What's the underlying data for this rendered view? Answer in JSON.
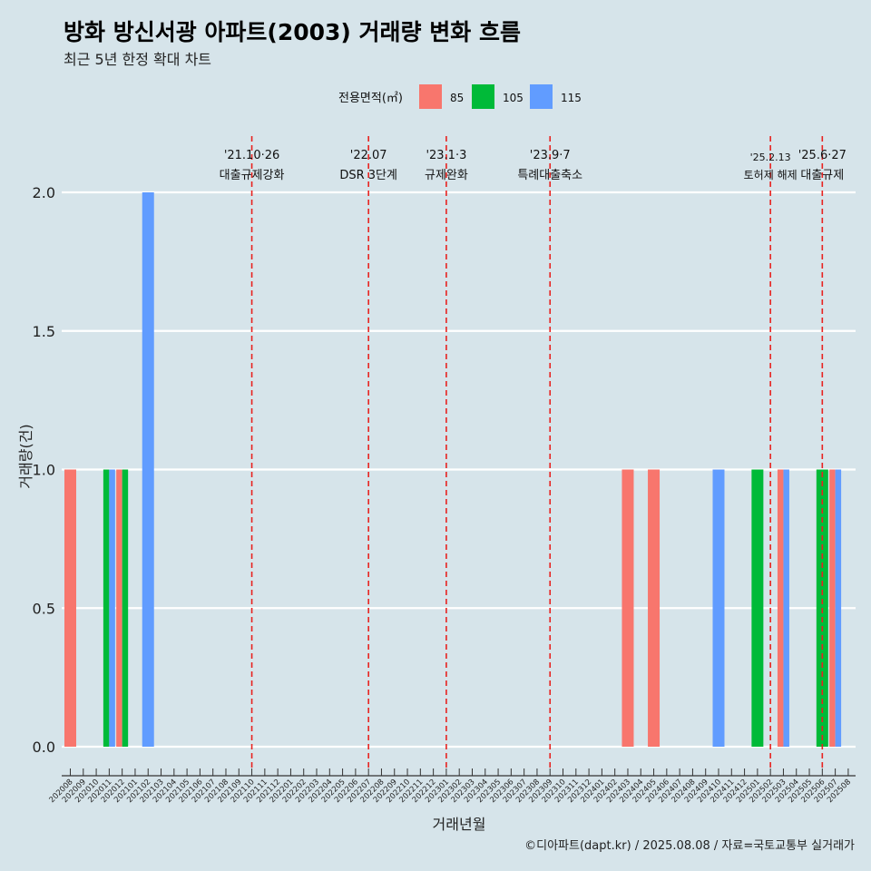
{
  "title": "방화 방신서광 아파트(2003) 거래량 변화 흐름",
  "subtitle": "최근 5년 한정 확대 차트",
  "caption": "©디아파트(dapt.kr) / 2025.08.08 / 자료=국토교통부 실거래가",
  "colors": {
    "background": "#d6e4ea",
    "grid": "#ffffff",
    "event_line": "#e8221f",
    "series_85": "#f8766d",
    "series_105": "#00ba38",
    "series_115": "#619cff"
  },
  "chart_data": {
    "type": "bar",
    "xlabel": "거래년월",
    "ylabel": "거래량(건)",
    "ylim": [
      0,
      2
    ],
    "grid": true,
    "legend": {
      "title": "전용면적(㎡)",
      "position": "top"
    },
    "y_ticks": [
      "0.0",
      "0.5",
      "1.0",
      "1.5",
      "2.0"
    ],
    "categories": [
      "202008",
      "202009",
      "202010",
      "202011",
      "202012",
      "202101",
      "202102",
      "202103",
      "202104",
      "202105",
      "202106",
      "202107",
      "202108",
      "202109",
      "202110",
      "202111",
      "202112",
      "202201",
      "202202",
      "202203",
      "202204",
      "202205",
      "202206",
      "202207",
      "202208",
      "202209",
      "202210",
      "202211",
      "202212",
      "202301",
      "202302",
      "202303",
      "202304",
      "202305",
      "202306",
      "202307",
      "202308",
      "202309",
      "202310",
      "202311",
      "202312",
      "202401",
      "202402",
      "202403",
      "202404",
      "202405",
      "202406",
      "202407",
      "202408",
      "202409",
      "202410",
      "202411",
      "202412",
      "202501",
      "202502",
      "202503",
      "202504",
      "202505",
      "202506",
      "202507",
      "202508"
    ],
    "series": [
      {
        "name": "85",
        "values": [
          {
            "month": "202008",
            "count": 1
          },
          {
            "month": "202012",
            "count": 1
          },
          {
            "month": "202403",
            "count": 1
          },
          {
            "month": "202405",
            "count": 1
          },
          {
            "month": "202503",
            "count": 1
          },
          {
            "month": "202507",
            "count": 1
          }
        ]
      },
      {
        "name": "105",
        "values": [
          {
            "month": "202011",
            "count": 1
          },
          {
            "month": "202012",
            "count": 1
          },
          {
            "month": "202501",
            "count": 1
          },
          {
            "month": "202506",
            "count": 1
          }
        ]
      },
      {
        "name": "115",
        "values": [
          {
            "month": "202011",
            "count": 1
          },
          {
            "month": "202102",
            "count": 2
          },
          {
            "month": "202410",
            "count": 1
          },
          {
            "month": "202503",
            "count": 1
          },
          {
            "month": "202507",
            "count": 1
          }
        ]
      }
    ],
    "events": [
      {
        "month": "202110",
        "date": "'21.10·26",
        "label": "대출규제강화"
      },
      {
        "month": "202207",
        "date": "'22.07",
        "label": "DSR 3단계"
      },
      {
        "month": "202301",
        "date": "'23.1·3",
        "label": "규제완화"
      },
      {
        "month": "202309",
        "date": "'23.9·7",
        "label": "특례대출축소"
      },
      {
        "month": "202502",
        "date": "'25.2.13",
        "label": "토허제 해제"
      },
      {
        "month": "202506",
        "date": "'25.6·27",
        "label": "대출규제"
      }
    ]
  }
}
